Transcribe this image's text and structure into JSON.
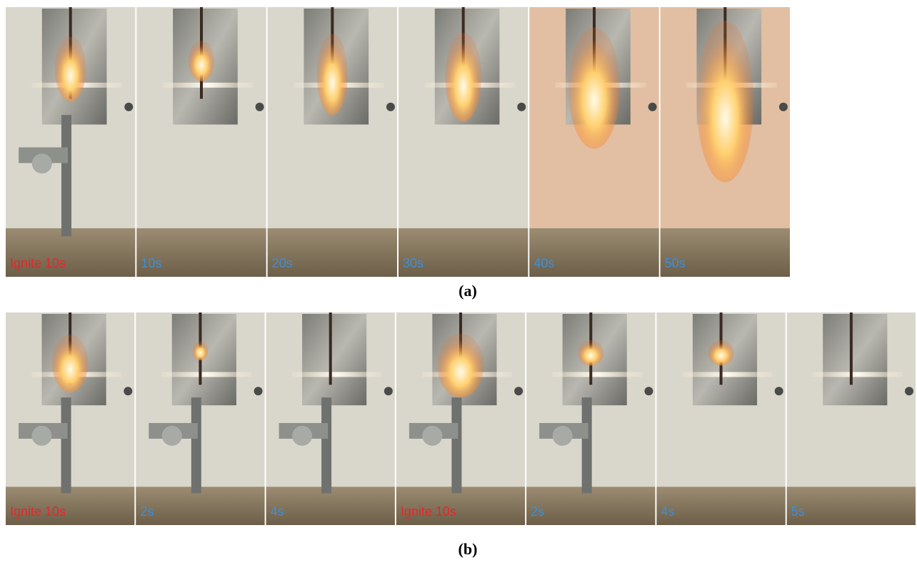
{
  "rows": [
    {
      "caption": "(a)",
      "panels": [
        {
          "label": "Ignite 10s",
          "color": "#e8262a"
        },
        {
          "label": "10s",
          "color": "#3d8fd9"
        },
        {
          "label": "20s",
          "color": "#3d8fd9"
        },
        {
          "label": "30s",
          "color": "#3d8fd9"
        },
        {
          "label": "40s",
          "color": "#3d8fd9"
        },
        {
          "label": "50s",
          "color": "#3d8fd9"
        }
      ]
    },
    {
      "caption": "(b)",
      "panels": [
        {
          "label": "Ignite 10s",
          "color": "#e8262a"
        },
        {
          "label": "2s",
          "color": "#3d8fd9"
        },
        {
          "label": "4s",
          "color": "#3d8fd9"
        },
        {
          "label": "Ignite 10s",
          "color": "#e8262a"
        },
        {
          "label": "2s",
          "color": "#3d8fd9"
        },
        {
          "label": "4s",
          "color": "#3d8fd9"
        },
        {
          "label": "5s",
          "color": "#3d8fd9"
        }
      ]
    }
  ]
}
